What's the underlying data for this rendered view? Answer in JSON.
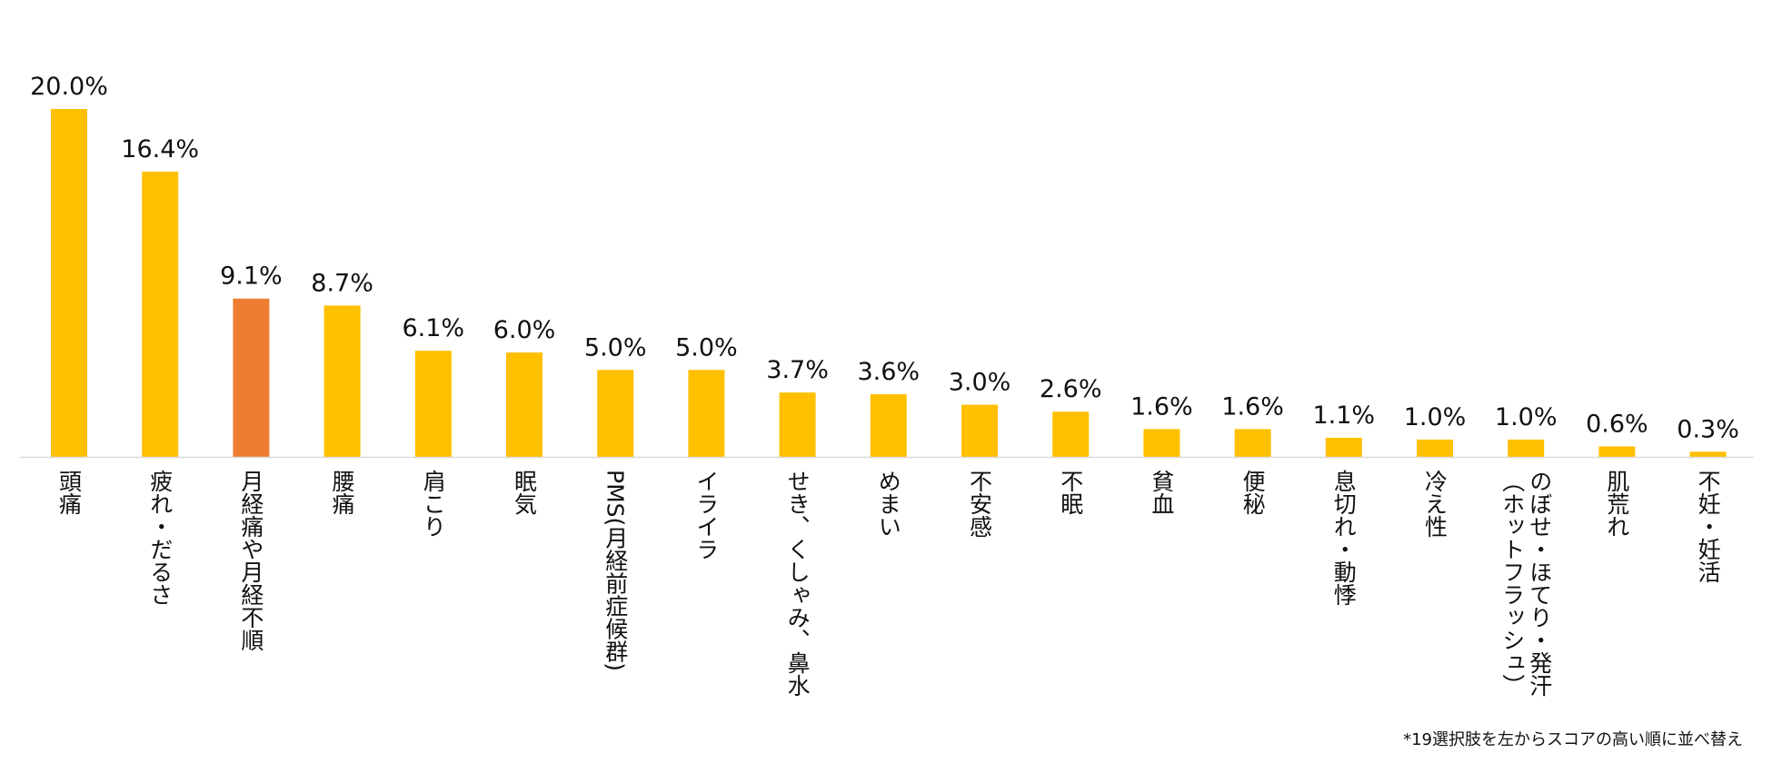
{
  "chart_data": {
    "type": "bar",
    "categories": [
      "頭痛",
      "疲れ・だるさ",
      "月経痛や月経不順",
      "腰痛",
      "肩こり",
      "眠気",
      "PMS(月経前症候群)",
      "イライラ",
      "せき、くしゃみ、鼻水",
      "めまい",
      "不安感",
      "不眠",
      "貧血",
      "便秘",
      "息切れ・動悸",
      "冷え性",
      "のぼせ・ほてり・発汗（ホットフラッシュ）",
      "肌荒れ",
      "不妊・妊活"
    ],
    "category_lines": [
      [
        "頭痛"
      ],
      [
        "疲れ・だるさ"
      ],
      [
        "月経痛や月経不順"
      ],
      [
        "腰痛"
      ],
      [
        "肩こり"
      ],
      [
        "眠気"
      ],
      [
        "PMS(月経前症候群)"
      ],
      [
        "イライラ"
      ],
      [
        "せき、くしゃみ、鼻水"
      ],
      [
        "めまい"
      ],
      [
        "不安感"
      ],
      [
        "不眠"
      ],
      [
        "貧血"
      ],
      [
        "便秘"
      ],
      [
        "息切れ・動悸"
      ],
      [
        "冷え性"
      ],
      [
        "のぼせ・ほてり・発汗",
        "（ホットフラッシュ）"
      ],
      [
        "肌荒れ"
      ],
      [
        "不妊・妊活"
      ]
    ],
    "values": [
      20.0,
      16.4,
      9.1,
      8.7,
      6.1,
      6.0,
      5.0,
      5.0,
      3.7,
      3.6,
      3.0,
      2.6,
      1.6,
      1.6,
      1.1,
      1.0,
      1.0,
      0.6,
      0.3
    ],
    "value_labels": [
      "20.0%",
      "16.4%",
      "9.1%",
      "8.7%",
      "6.1%",
      "6.0%",
      "5.0%",
      "5.0%",
      "3.7%",
      "3.6%",
      "3.0%",
      "2.6%",
      "1.6%",
      "1.6%",
      "1.1%",
      "1.0%",
      "1.0%",
      "0.6%",
      "0.3%"
    ],
    "highlight_index": 2,
    "ylim": [
      0,
      20
    ],
    "grid": false,
    "legend": "none",
    "title": "",
    "xlabel": "",
    "ylabel": "",
    "colors": {
      "bar": "#FFC000",
      "highlight": "#ED7D31",
      "axis": "#D9D9D9"
    }
  },
  "footnote": "*19選択肢を左からスコアの高い順に並べ替え"
}
